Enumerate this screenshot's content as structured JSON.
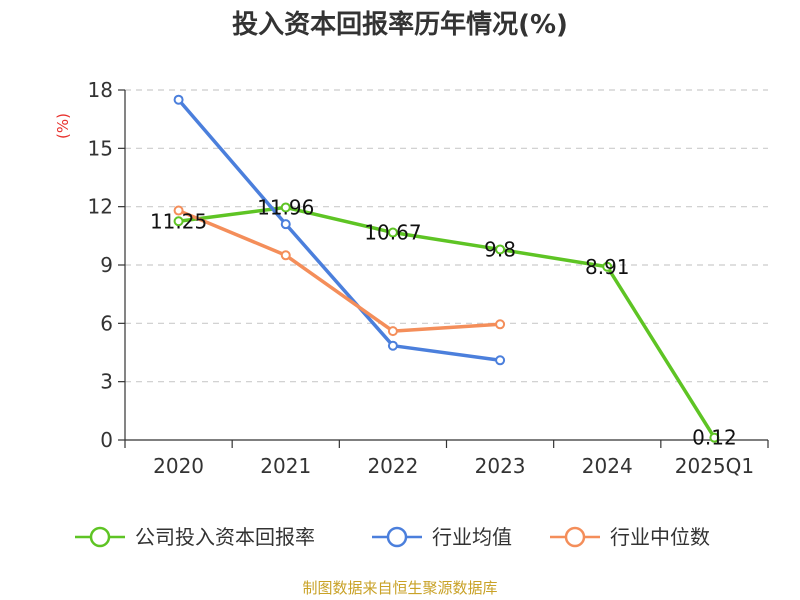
{
  "chart_data": {
    "type": "line",
    "title": "投入资本回报率历年情况(%)",
    "ylabel": "(%)",
    "xlabel": "",
    "categories": [
      "2020",
      "2021",
      "2022",
      "2023",
      "2024",
      "2025Q1"
    ],
    "ylim": [
      0,
      18
    ],
    "yticks": [
      "0",
      "3",
      "6",
      "9",
      "12",
      "15",
      "18"
    ],
    "grid": true,
    "legend_position": "bottom",
    "series": [
      {
        "name": "公司投入资本回报率",
        "color": "#5ec424",
        "values": [
          11.25,
          11.96,
          10.67,
          9.8,
          8.91,
          0.12
        ],
        "labels": [
          "11.25",
          "11.96",
          "10.67",
          "9.8",
          "8.91",
          "0.12"
        ]
      },
      {
        "name": "行业均值",
        "color": "#4b7fdc",
        "values": [
          17.5,
          11.1,
          4.85,
          4.1,
          null,
          null
        ]
      },
      {
        "name": "行业中位数",
        "color": "#f48e5a",
        "values": [
          11.8,
          9.5,
          5.6,
          5.95,
          null,
          null
        ]
      }
    ]
  },
  "source": "制图数据来自恒生聚源数据库"
}
